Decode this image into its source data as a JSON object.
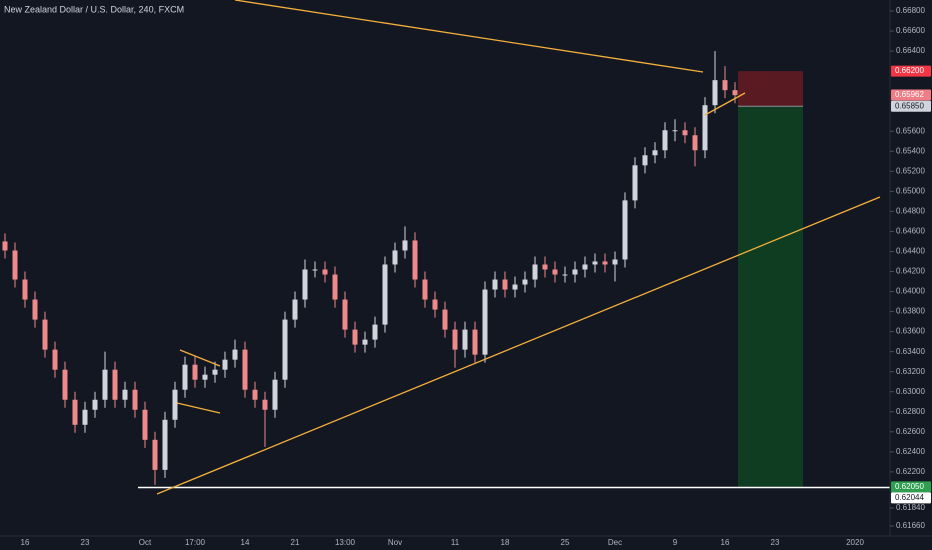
{
  "chart_data": {
    "type": "candlestick",
    "title": "New Zealand Dollar / U.S. Dollar, 240, FXCM",
    "categories": [
      null,
      null,
      "16",
      null,
      null,
      null,
      null,
      null,
      "23",
      null,
      null,
      null,
      null,
      null,
      "Oct",
      null,
      null,
      null,
      null,
      "17:00",
      null,
      null,
      null,
      null,
      "14",
      null,
      null,
      null,
      null,
      "21",
      null,
      null,
      null,
      null,
      "13:00",
      null,
      null,
      null,
      null,
      "Nov",
      null,
      null,
      null,
      null,
      null,
      "11",
      null,
      null,
      null,
      null,
      "18",
      null,
      null,
      null,
      null,
      null,
      "25",
      null,
      null,
      null,
      null,
      "Dec",
      null,
      null,
      null,
      null,
      null,
      "9",
      null,
      null,
      null,
      null,
      "16",
      null,
      null,
      null,
      null,
      "23",
      null,
      null,
      null,
      null,
      null,
      null,
      null,
      "2020",
      null,
      null
    ],
    "open": [
      0.645,
      0.6441,
      0.6412,
      0.6392,
      0.6372,
      0.6342,
      0.6322,
      0.6292,
      0.6267,
      0.6282,
      0.6292,
      0.6322,
      0.6292,
      0.6302,
      0.6282,
      0.6252,
      0.6222,
      0.6272,
      0.6302,
      0.6327,
      0.6312,
      0.6317,
      0.6322,
      0.6332,
      0.6342,
      0.6302,
      0.6292,
      0.6282,
      0.6312,
      0.6372,
      0.6392,
      0.6422,
      0.6422,
      0.6417,
      0.6392,
      0.6362,
      0.6347,
      0.6352,
      0.6367,
      0.6427,
      0.6441,
      0.6451,
      0.6412,
      0.6392,
      0.6382,
      0.6362,
      0.6342,
      0.6362,
      0.6337,
      0.6402,
      0.6412,
      0.6402,
      0.6407,
      0.6412,
      0.6427,
      0.6422,
      0.6417,
      0.6417,
      0.6422,
      0.6427,
      0.643,
      0.6427,
      0.6432,
      0.6491,
      0.6526,
      0.6536,
      0.6541,
      0.6561,
      0.6561,
      0.6556,
      0.6541,
      0.6586,
      0.6611,
      0.6601,
      null,
      null,
      null,
      null,
      null,
      null,
      null,
      null,
      null,
      null,
      null,
      null,
      null,
      null
    ],
    "high": [
      0.6458,
      0.6449,
      0.642,
      0.64,
      0.638,
      0.635,
      0.633,
      0.63,
      0.629,
      0.63,
      0.634,
      0.633,
      0.631,
      0.631,
      0.629,
      0.626,
      0.628,
      0.631,
      0.6335,
      0.6335,
      0.6325,
      0.633,
      0.634,
      0.6352,
      0.635,
      0.631,
      0.63,
      0.632,
      0.638,
      0.64,
      0.6432,
      0.643,
      0.643,
      0.6425,
      0.64,
      0.637,
      0.636,
      0.6375,
      0.6435,
      0.6449,
      0.6465,
      0.6459,
      0.642,
      0.64,
      0.639,
      0.637,
      0.637,
      0.637,
      0.641,
      0.642,
      0.642,
      0.6415,
      0.642,
      0.6435,
      0.6435,
      0.643,
      0.6425,
      0.643,
      0.6435,
      0.6438,
      0.6438,
      0.644,
      0.6499,
      0.6534,
      0.6544,
      0.6549,
      0.6569,
      0.6572,
      0.6569,
      0.6564,
      0.6594,
      0.664,
      0.6625,
      0.6609,
      null,
      null,
      null,
      null,
      null,
      null,
      null,
      null,
      null,
      null,
      null,
      null,
      null,
      null
    ],
    "low": [
      0.6433,
      0.6404,
      0.6384,
      0.6364,
      0.6334,
      0.6314,
      0.6284,
      0.6259,
      0.6259,
      0.6274,
      0.6284,
      0.6284,
      0.6284,
      0.6274,
      0.6244,
      0.6207,
      0.6214,
      0.6264,
      0.6294,
      0.6304,
      0.6304,
      0.6309,
      0.6314,
      0.6324,
      0.6294,
      0.6284,
      0.6245,
      0.6274,
      0.6304,
      0.6364,
      0.6384,
      0.6414,
      0.6409,
      0.6384,
      0.6354,
      0.6339,
      0.6339,
      0.6344,
      0.6359,
      0.6419,
      0.6433,
      0.6404,
      0.6384,
      0.6374,
      0.6354,
      0.6324,
      0.6334,
      0.6329,
      0.6329,
      0.6394,
      0.6394,
      0.6394,
      0.6399,
      0.6404,
      0.6414,
      0.6409,
      0.6409,
      0.6409,
      0.6414,
      0.6419,
      0.6419,
      0.641,
      0.6424,
      0.6483,
      0.6518,
      0.6528,
      0.6533,
      0.655,
      0.6548,
      0.6525,
      0.6533,
      0.6578,
      0.6593,
      0.6588,
      null,
      null,
      null,
      null,
      null,
      null,
      null,
      null,
      null,
      null,
      null,
      null,
      null,
      null
    ],
    "close": [
      0.6441,
      0.6412,
      0.6392,
      0.6372,
      0.6342,
      0.6322,
      0.6292,
      0.6267,
      0.6282,
      0.6292,
      0.6322,
      0.6292,
      0.6302,
      0.6282,
      0.6252,
      0.6222,
      0.6272,
      0.6302,
      0.6327,
      0.6312,
      0.6317,
      0.6322,
      0.6332,
      0.6342,
      0.6302,
      0.6292,
      0.6282,
      0.6312,
      0.6372,
      0.6392,
      0.6422,
      0.6422,
      0.6417,
      0.6392,
      0.6362,
      0.6347,
      0.6352,
      0.6367,
      0.6427,
      0.6441,
      0.6451,
      0.6412,
      0.6392,
      0.6382,
      0.6362,
      0.6342,
      0.6362,
      0.6337,
      0.6402,
      0.6412,
      0.6402,
      0.6407,
      0.6412,
      0.6427,
      0.6422,
      0.6417,
      0.6417,
      0.6422,
      0.6427,
      0.643,
      0.6427,
      0.6432,
      0.6491,
      0.6526,
      0.6536,
      0.6541,
      0.6561,
      0.6561,
      0.6556,
      0.6541,
      0.6586,
      0.6611,
      0.6601,
      0.6596,
      null,
      null,
      null,
      null,
      null,
      null,
      null,
      null,
      null,
      null,
      null,
      null,
      null,
      null
    ],
    "up_color": "#d1d4dc",
    "down_color": "#ef8a8a",
    "ylim": [
      0.6156,
      0.6691
    ],
    "yticks": [
      {
        "value": 0.668,
        "label": "0.66800"
      },
      {
        "value": 0.666,
        "label": "0.66600"
      },
      {
        "value": 0.664,
        "label": "0.66400"
      },
      {
        "value": 0.656,
        "label": "0.65600"
      },
      {
        "value": 0.654,
        "label": "0.65400"
      },
      {
        "value": 0.652,
        "label": "0.65200"
      },
      {
        "value": 0.65,
        "label": "0.65000"
      },
      {
        "value": 0.648,
        "label": "0.64800"
      },
      {
        "value": 0.646,
        "label": "0.64600"
      },
      {
        "value": 0.644,
        "label": "0.64400"
      },
      {
        "value": 0.642,
        "label": "0.64200"
      },
      {
        "value": 0.64,
        "label": "0.64000"
      },
      {
        "value": 0.638,
        "label": "0.63800"
      },
      {
        "value": 0.636,
        "label": "0.63600"
      },
      {
        "value": 0.634,
        "label": "0.63400"
      },
      {
        "value": 0.632,
        "label": "0.63200"
      },
      {
        "value": 0.63,
        "label": "0.63000"
      },
      {
        "value": 0.628,
        "label": "0.62800"
      },
      {
        "value": 0.626,
        "label": "0.62600"
      },
      {
        "value": 0.624,
        "label": "0.62400"
      },
      {
        "value": 0.622,
        "label": "0.62200"
      },
      {
        "value": 0.6184,
        "label": "0.61840"
      },
      {
        "value": 0.6166,
        "label": "0.61660"
      }
    ],
    "grid": false,
    "price_labels": [
      {
        "value": 0.662,
        "label": "0.66200",
        "color": "#f23645",
        "text_color": "#ffffff"
      },
      {
        "value": 0.65962,
        "label": "0.65962",
        "color": "#ef7d85",
        "text_color": "#ffffff"
      },
      {
        "value": 0.6585,
        "label": "0.65850",
        "color": "#d1d4dc",
        "text_color": "#131722"
      },
      {
        "value": 0.6205,
        "label": "0.62050",
        "color": "#2e9e4f",
        "text_color": "#ffffff"
      },
      {
        "value": 0.62044,
        "label": "0.62044",
        "color": "#ffffff",
        "text_color": "#131722"
      }
    ],
    "position": {
      "stop": 0.662,
      "entry": 0.6585,
      "target": 0.6205,
      "loss_color": "#5a1a22",
      "profit_color": "#0f3d22"
    },
    "horizontal_line": {
      "value": 0.62044,
      "color": "#ffffff"
    }
  }
}
